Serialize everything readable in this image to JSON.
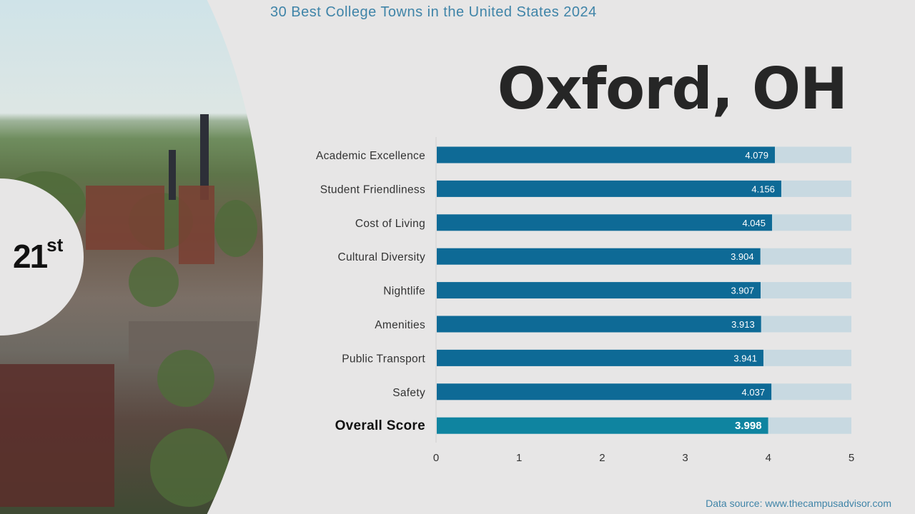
{
  "header": {
    "title": "30 Best College Towns in the United States 2024",
    "city": "Oxford, OH"
  },
  "rank": {
    "number": "21",
    "suffix": "st"
  },
  "footer": {
    "source": "Data source: www.thecampusadvisor.com"
  },
  "colors": {
    "bar": "#0e6a96",
    "overall_bar": "#0f84a0",
    "track": "#c8d9e1",
    "title": "#3f84a8"
  },
  "chart_data": {
    "type": "bar",
    "orientation": "horizontal",
    "categories": [
      "Academic Excellence",
      "Student Friendliness",
      "Cost of Living",
      "Cultural Diversity",
      "Nightlife",
      "Amenities",
      "Public Transport",
      "Safety",
      "Overall Score"
    ],
    "values": [
      4.079,
      4.156,
      4.045,
      3.904,
      3.907,
      3.913,
      3.941,
      4.037,
      3.998
    ],
    "labels": [
      "4.079",
      "4.156",
      "4.045",
      "3.904",
      "3.907",
      "3.913",
      "3.941",
      "4.037",
      "3.998"
    ],
    "max": 5,
    "xlim": [
      0,
      5
    ],
    "xticks": [
      "0",
      "1",
      "2",
      "3",
      "4",
      "5"
    ],
    "title": "",
    "xlabel": "",
    "ylabel": ""
  }
}
